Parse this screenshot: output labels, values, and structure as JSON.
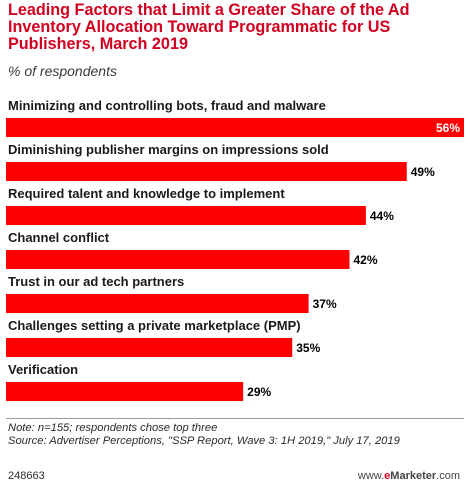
{
  "title": "Leading Factors that Limit a Greater Share of the Ad Inventory Allocation Toward Programmatic for US Publishers, March 2019",
  "subtitle": "% of respondents",
  "chart_data": {
    "type": "bar",
    "orientation": "horizontal",
    "categories": [
      "Minimizing and controlling bots, fraud and malware",
      "Diminishing publisher margins on impressions sold",
      "Required talent and knowledge to implement",
      "Channel conflict",
      "Trust in our ad tech partners",
      "Challenges setting a private marketplace (PMP)",
      "Verification"
    ],
    "values": [
      56,
      49,
      44,
      42,
      37,
      35,
      29
    ],
    "value_labels": [
      "56%",
      "49%",
      "44%",
      "42%",
      "37%",
      "35%",
      "29%"
    ],
    "xlim": [
      0,
      56
    ],
    "bar_color": "#ff0000",
    "grid": false,
    "legend": "none"
  },
  "notes": {
    "note": "Note: n=155; respondents chose top three",
    "source": "Source: Advertiser Perceptions, \"SSP Report, Wave 3: 1H 2019,\" July 17, 2019"
  },
  "footer": {
    "chart_id": "248663",
    "brand_prefix": "www.",
    "brand_e": "e",
    "brand_main": "Marketer",
    "brand_suffix": ".com"
  },
  "colors": {
    "title": "#d1001f",
    "bar": "#ff0000",
    "value_inside": "#ffffff",
    "value_outside": "#000000"
  }
}
